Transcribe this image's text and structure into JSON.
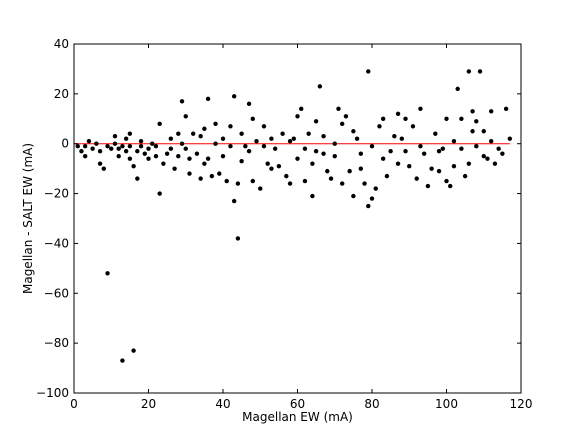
{
  "chart_data": {
    "type": "scatter",
    "xlabel": "Magellan EW (mA)",
    "ylabel": "Magellan - SALT EW (mA)",
    "xlim": [
      0,
      120
    ],
    "ylim": [
      -100,
      40
    ],
    "xticks": [
      "0",
      "20",
      "40",
      "60",
      "80",
      "100",
      "120"
    ],
    "yticks": [
      "40",
      "20",
      "0",
      "−20",
      "−40",
      "−60",
      "−80",
      "−100"
    ],
    "grid": false,
    "marker_color": "#000000",
    "reference_line": {
      "y": 0,
      "x_range": [
        0,
        117
      ],
      "color": "#ff0000"
    },
    "points": [
      [
        1,
        -1
      ],
      [
        2,
        -3
      ],
      [
        3,
        -5
      ],
      [
        3,
        -1
      ],
      [
        4,
        1
      ],
      [
        5,
        -2
      ],
      [
        6,
        0
      ],
      [
        7,
        -3
      ],
      [
        7,
        -8
      ],
      [
        8,
        -10
      ],
      [
        9,
        -1
      ],
      [
        9,
        -52
      ],
      [
        10,
        -2
      ],
      [
        11,
        0
      ],
      [
        11,
        3
      ],
      [
        12,
        -2
      ],
      [
        12,
        -5
      ],
      [
        13,
        -1
      ],
      [
        13,
        -87
      ],
      [
        14,
        -3
      ],
      [
        14,
        2
      ],
      [
        15,
        -6
      ],
      [
        15,
        -1
      ],
      [
        15,
        4
      ],
      [
        16,
        -83
      ],
      [
        16,
        -9
      ],
      [
        17,
        -14
      ],
      [
        17,
        -3
      ],
      [
        18,
        1
      ],
      [
        18,
        -1
      ],
      [
        19,
        -4
      ],
      [
        20,
        -2
      ],
      [
        20,
        -6
      ],
      [
        21,
        0
      ],
      [
        22,
        -1
      ],
      [
        22,
        -5
      ],
      [
        23,
        8
      ],
      [
        23,
        -20
      ],
      [
        24,
        -8
      ],
      [
        25,
        -4
      ],
      [
        26,
        2
      ],
      [
        26,
        -2
      ],
      [
        27,
        -10
      ],
      [
        28,
        4
      ],
      [
        28,
        -5
      ],
      [
        29,
        17
      ],
      [
        29,
        0
      ],
      [
        30,
        -2
      ],
      [
        30,
        11
      ],
      [
        31,
        -6
      ],
      [
        31,
        -12
      ],
      [
        32,
        4
      ],
      [
        33,
        -4
      ],
      [
        34,
        3
      ],
      [
        34,
        -14
      ],
      [
        35,
        -8
      ],
      [
        35,
        6
      ],
      [
        36,
        18
      ],
      [
        36,
        -6
      ],
      [
        37,
        -13
      ],
      [
        38,
        0
      ],
      [
        38,
        8
      ],
      [
        39,
        -12
      ],
      [
        40,
        -5
      ],
      [
        40,
        2
      ],
      [
        41,
        -15
      ],
      [
        42,
        -1
      ],
      [
        42,
        7
      ],
      [
        43,
        19
      ],
      [
        43,
        -23
      ],
      [
        44,
        -38
      ],
      [
        44,
        -16
      ],
      [
        45,
        4
      ],
      [
        45,
        -7
      ],
      [
        46,
        -1
      ],
      [
        47,
        -3
      ],
      [
        47,
        16
      ],
      [
        48,
        10
      ],
      [
        48,
        -15
      ],
      [
        49,
        1
      ],
      [
        50,
        -18
      ],
      [
        51,
        -1
      ],
      [
        51,
        7
      ],
      [
        52,
        -8
      ],
      [
        53,
        -10
      ],
      [
        53,
        2
      ],
      [
        54,
        -2
      ],
      [
        55,
        -9
      ],
      [
        56,
        4
      ],
      [
        57,
        -13
      ],
      [
        58,
        1
      ],
      [
        58,
        -16
      ],
      [
        59,
        2
      ],
      [
        60,
        -6
      ],
      [
        60,
        11
      ],
      [
        61,
        14
      ],
      [
        62,
        -2
      ],
      [
        62,
        -15
      ],
      [
        63,
        4
      ],
      [
        64,
        -21
      ],
      [
        64,
        -8
      ],
      [
        65,
        -3
      ],
      [
        65,
        9
      ],
      [
        66,
        23
      ],
      [
        67,
        -4
      ],
      [
        67,
        3
      ],
      [
        68,
        -11
      ],
      [
        69,
        -14
      ],
      [
        70,
        0
      ],
      [
        70,
        -5
      ],
      [
        71,
        14
      ],
      [
        72,
        -16
      ],
      [
        72,
        8
      ],
      [
        73,
        11
      ],
      [
        74,
        -11
      ],
      [
        75,
        -21
      ],
      [
        75,
        5
      ],
      [
        76,
        2
      ],
      [
        77,
        -4
      ],
      [
        77,
        -10
      ],
      [
        78,
        -16
      ],
      [
        79,
        29
      ],
      [
        79,
        -25
      ],
      [
        80,
        -22
      ],
      [
        80,
        -1
      ],
      [
        81,
        -18
      ],
      [
        82,
        7
      ],
      [
        83,
        -6
      ],
      [
        83,
        10
      ],
      [
        84,
        -13
      ],
      [
        85,
        -3
      ],
      [
        86,
        3
      ],
      [
        87,
        -8
      ],
      [
        87,
        12
      ],
      [
        88,
        2
      ],
      [
        89,
        -3
      ],
      [
        89,
        10
      ],
      [
        90,
        -9
      ],
      [
        91,
        7
      ],
      [
        92,
        -14
      ],
      [
        93,
        -1
      ],
      [
        93,
        14
      ],
      [
        94,
        -4
      ],
      [
        95,
        -17
      ],
      [
        96,
        -10
      ],
      [
        97,
        4
      ],
      [
        98,
        -11
      ],
      [
        98,
        -3
      ],
      [
        99,
        -2
      ],
      [
        100,
        10
      ],
      [
        100,
        -15
      ],
      [
        101,
        -17
      ],
      [
        102,
        1
      ],
      [
        102,
        -9
      ],
      [
        103,
        22
      ],
      [
        104,
        -2
      ],
      [
        104,
        10
      ],
      [
        105,
        -13
      ],
      [
        106,
        29
      ],
      [
        106,
        -8
      ],
      [
        107,
        5
      ],
      [
        107,
        13
      ],
      [
        108,
        -1
      ],
      [
        108,
        9
      ],
      [
        109,
        29
      ],
      [
        110,
        5
      ],
      [
        110,
        -5
      ],
      [
        111,
        -6
      ],
      [
        112,
        1
      ],
      [
        112,
        13
      ],
      [
        113,
        -8
      ],
      [
        114,
        -2
      ],
      [
        115,
        -4
      ],
      [
        116,
        14
      ],
      [
        117,
        2
      ]
    ]
  }
}
